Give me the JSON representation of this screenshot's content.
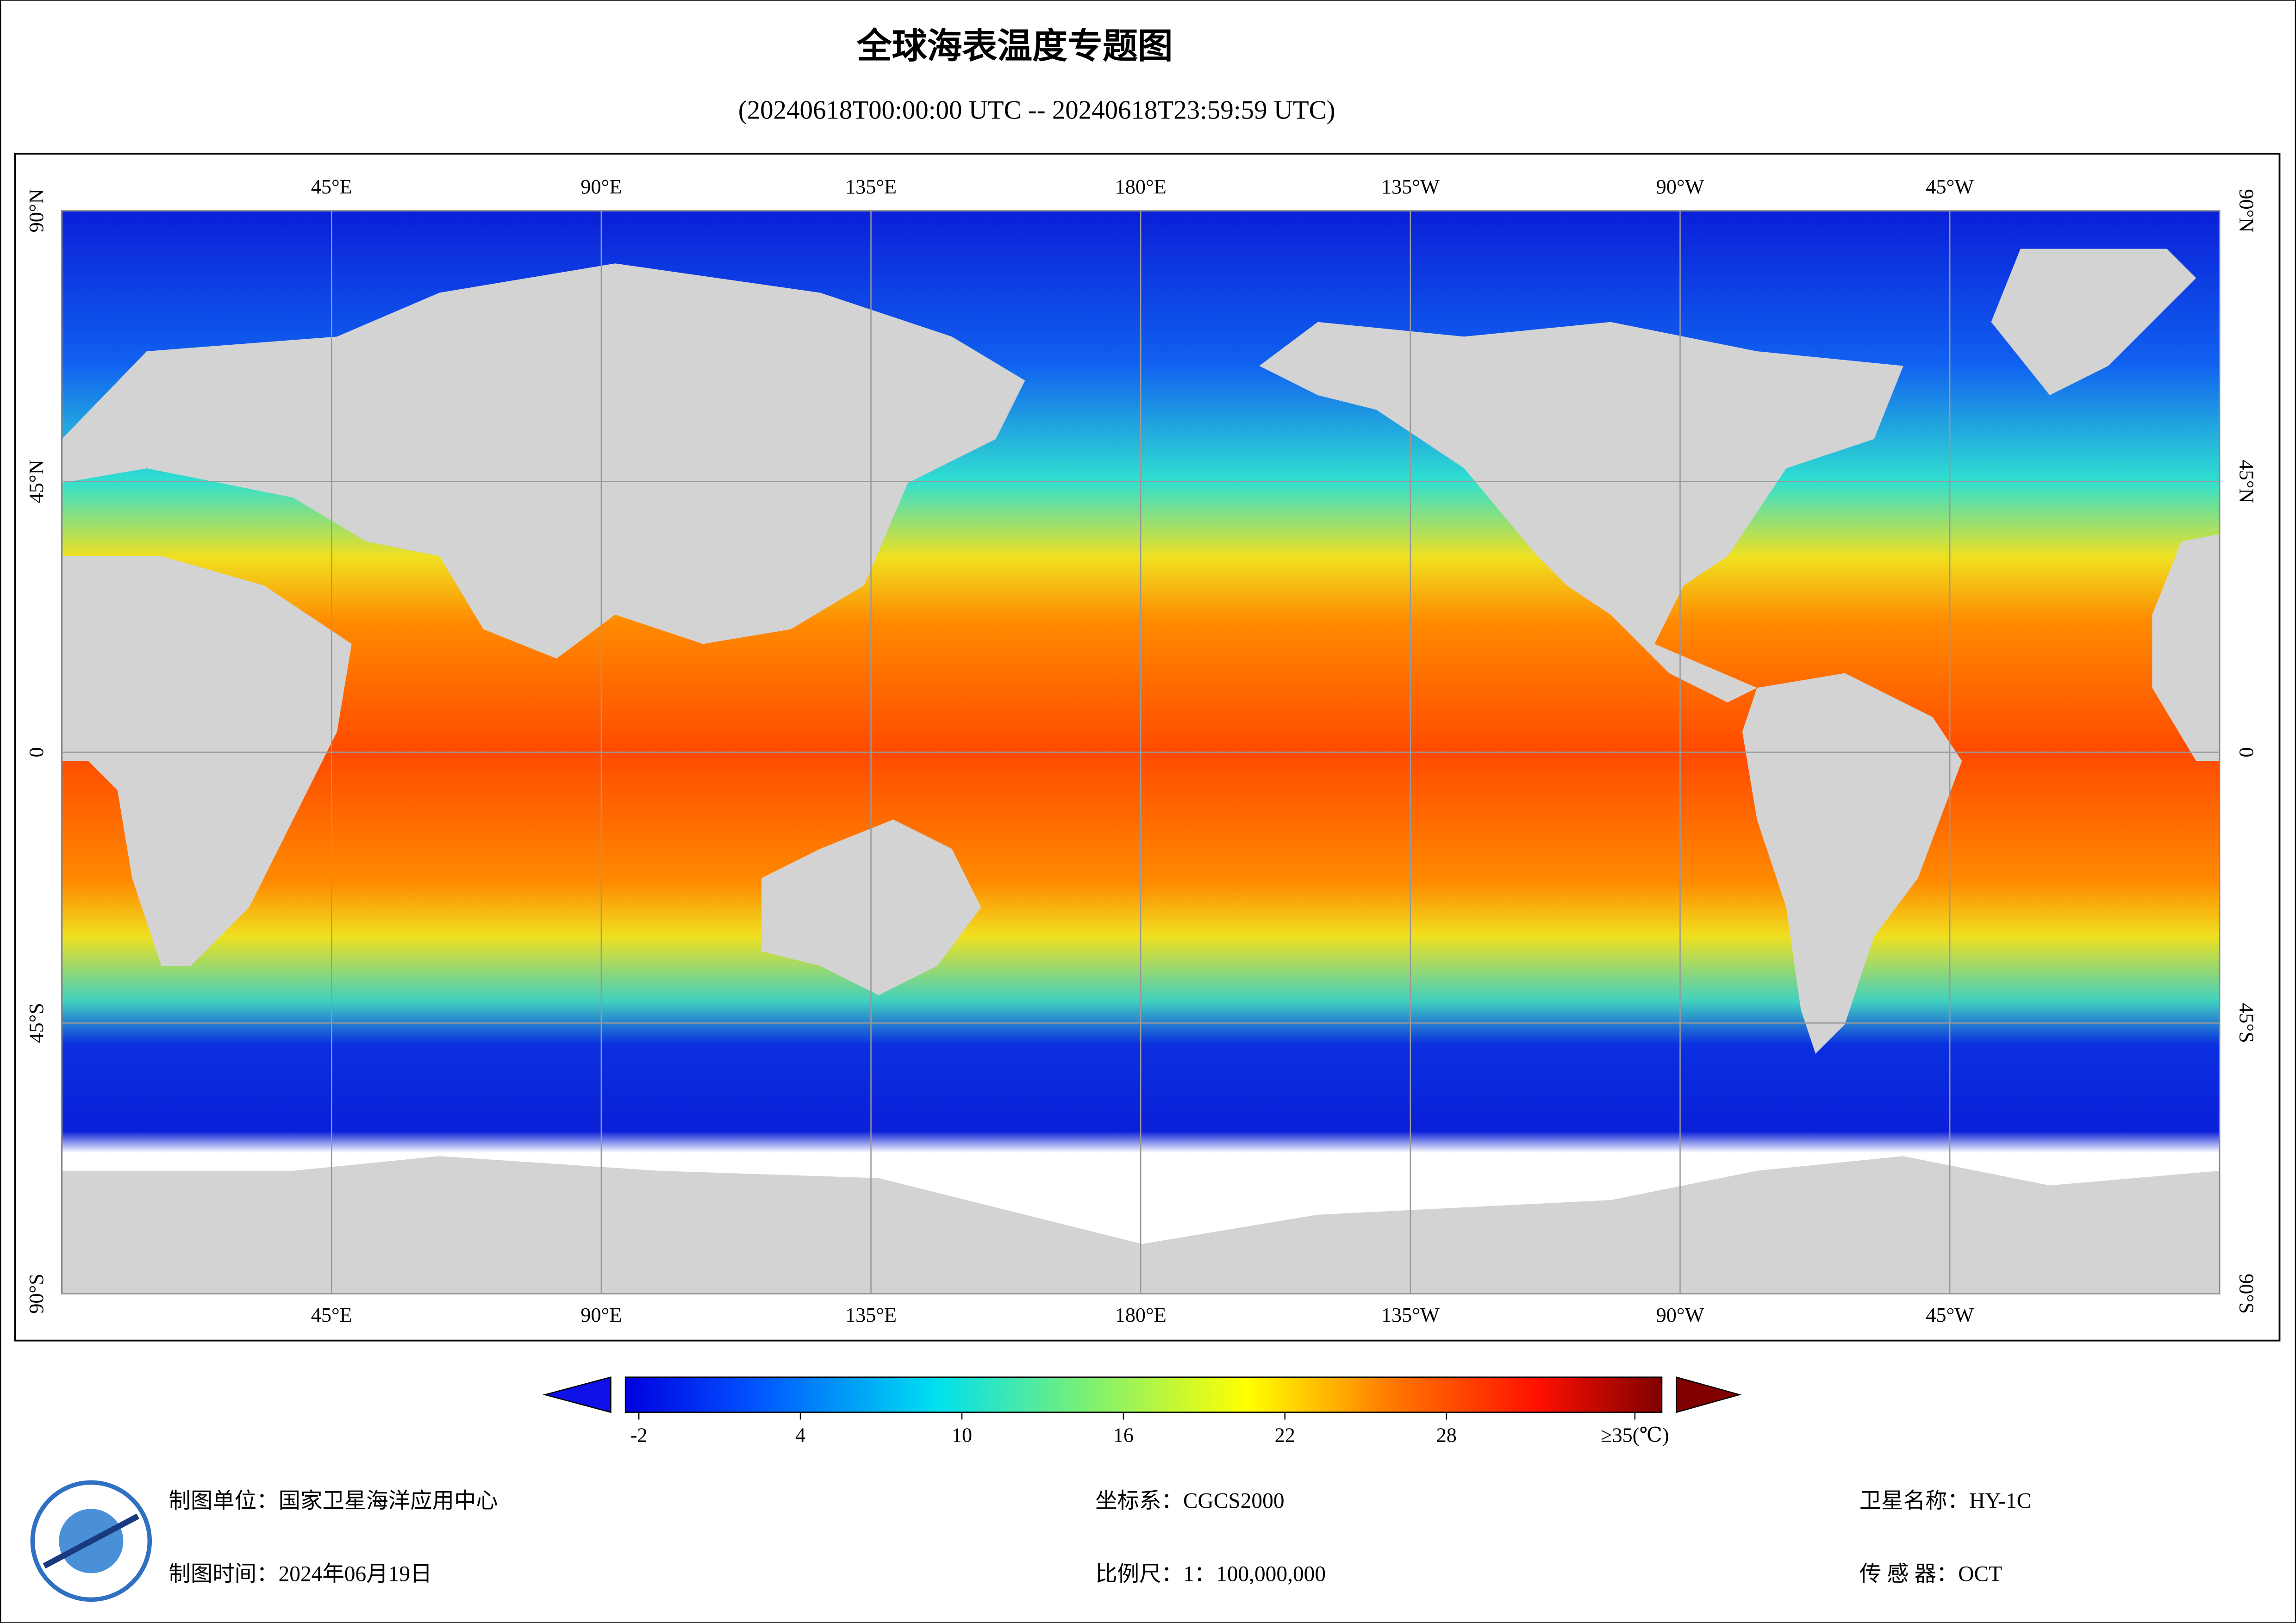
{
  "header": {
    "title": "全球海表温度专题图",
    "subtitle": "(20240618T00:00:00 UTC -- 20240618T23:59:59 UTC)"
  },
  "map": {
    "xlim": [
      0,
      360
    ],
    "ylim": [
      -90,
      90
    ],
    "lon_ticks": [
      {
        "value": 45,
        "label": "45°E"
      },
      {
        "value": 90,
        "label": "90°E"
      },
      {
        "value": 135,
        "label": "135°E"
      },
      {
        "value": 180,
        "label": "180°E"
      },
      {
        "value": 225,
        "label": "135°W"
      },
      {
        "value": 270,
        "label": "90°W"
      },
      {
        "value": 315,
        "label": "45°W"
      }
    ],
    "lat_ticks": [
      {
        "value": 90,
        "label": "90°N"
      },
      {
        "value": 45,
        "label": "45°N"
      },
      0,
      {
        "value": -45,
        "label": "45°S"
      },
      {
        "value": -90,
        "label": "90°S"
      }
    ]
  },
  "colorbar": {
    "range": [
      -2.5,
      36
    ],
    "ticks": [
      -2,
      4,
      10,
      16,
      22,
      28,
      {
        "value": 35,
        "label": "≥35(℃)"
      }
    ]
  },
  "footer": {
    "unit": "制图单位：国家卫星海洋应用中心",
    "date": "制图时间：2024年06月19日",
    "crs": "坐标系：CGCS2000",
    "scale": "比例尺：1：100,000,000",
    "satellite": "卫星名称：HY-1C",
    "sensor": "传 感 器：OCT"
  }
}
